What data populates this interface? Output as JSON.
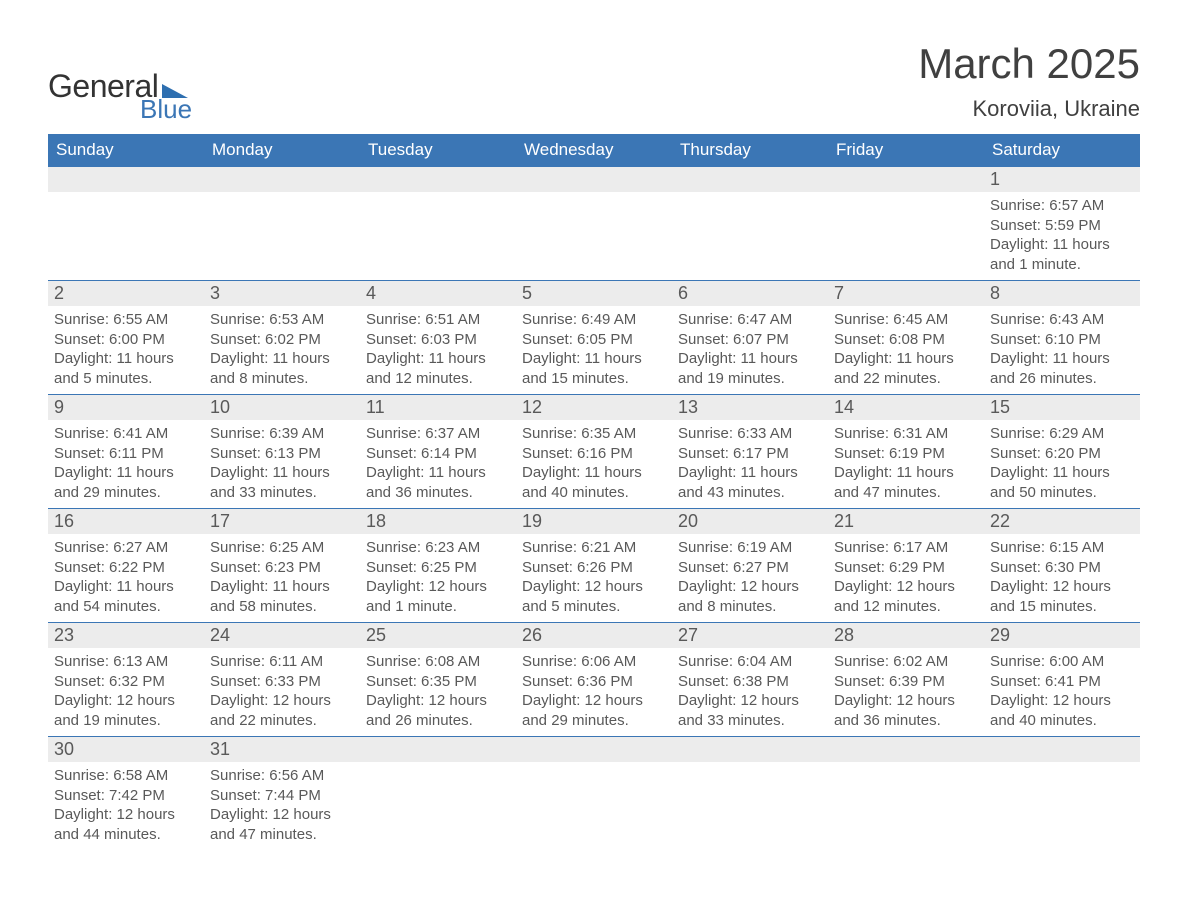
{
  "brand": {
    "word1": "General",
    "word2": "Blue",
    "shape_color": "#2e6fb0",
    "word1_color": "#333333",
    "word2_color": "#3b76b5"
  },
  "title": {
    "month_year": "March 2025",
    "location": "Koroviia, Ukraine",
    "title_fontsize": 42,
    "location_fontsize": 22,
    "text_color": "#404040"
  },
  "calendar": {
    "type": "table",
    "header_bg": "#3b76b5",
    "header_text_color": "#ffffff",
    "daynum_bg": "#ececec",
    "row_border_color": "#3b76b5",
    "body_text_color": "#595959",
    "header_fontsize": 17,
    "daynum_fontsize": 18,
    "body_fontsize": 15,
    "columns": [
      "Sunday",
      "Monday",
      "Tuesday",
      "Wednesday",
      "Thursday",
      "Friday",
      "Saturday"
    ],
    "weeks": [
      [
        null,
        null,
        null,
        null,
        null,
        null,
        {
          "n": 1,
          "sunrise": "6:57 AM",
          "sunset": "5:59 PM",
          "daylight": "11 hours and 1 minute."
        }
      ],
      [
        {
          "n": 2,
          "sunrise": "6:55 AM",
          "sunset": "6:00 PM",
          "daylight": "11 hours and 5 minutes."
        },
        {
          "n": 3,
          "sunrise": "6:53 AM",
          "sunset": "6:02 PM",
          "daylight": "11 hours and 8 minutes."
        },
        {
          "n": 4,
          "sunrise": "6:51 AM",
          "sunset": "6:03 PM",
          "daylight": "11 hours and 12 minutes."
        },
        {
          "n": 5,
          "sunrise": "6:49 AM",
          "sunset": "6:05 PM",
          "daylight": "11 hours and 15 minutes."
        },
        {
          "n": 6,
          "sunrise": "6:47 AM",
          "sunset": "6:07 PM",
          "daylight": "11 hours and 19 minutes."
        },
        {
          "n": 7,
          "sunrise": "6:45 AM",
          "sunset": "6:08 PM",
          "daylight": "11 hours and 22 minutes."
        },
        {
          "n": 8,
          "sunrise": "6:43 AM",
          "sunset": "6:10 PM",
          "daylight": "11 hours and 26 minutes."
        }
      ],
      [
        {
          "n": 9,
          "sunrise": "6:41 AM",
          "sunset": "6:11 PM",
          "daylight": "11 hours and 29 minutes."
        },
        {
          "n": 10,
          "sunrise": "6:39 AM",
          "sunset": "6:13 PM",
          "daylight": "11 hours and 33 minutes."
        },
        {
          "n": 11,
          "sunrise": "6:37 AM",
          "sunset": "6:14 PM",
          "daylight": "11 hours and 36 minutes."
        },
        {
          "n": 12,
          "sunrise": "6:35 AM",
          "sunset": "6:16 PM",
          "daylight": "11 hours and 40 minutes."
        },
        {
          "n": 13,
          "sunrise": "6:33 AM",
          "sunset": "6:17 PM",
          "daylight": "11 hours and 43 minutes."
        },
        {
          "n": 14,
          "sunrise": "6:31 AM",
          "sunset": "6:19 PM",
          "daylight": "11 hours and 47 minutes."
        },
        {
          "n": 15,
          "sunrise": "6:29 AM",
          "sunset": "6:20 PM",
          "daylight": "11 hours and 50 minutes."
        }
      ],
      [
        {
          "n": 16,
          "sunrise": "6:27 AM",
          "sunset": "6:22 PM",
          "daylight": "11 hours and 54 minutes."
        },
        {
          "n": 17,
          "sunrise": "6:25 AM",
          "sunset": "6:23 PM",
          "daylight": "11 hours and 58 minutes."
        },
        {
          "n": 18,
          "sunrise": "6:23 AM",
          "sunset": "6:25 PM",
          "daylight": "12 hours and 1 minute."
        },
        {
          "n": 19,
          "sunrise": "6:21 AM",
          "sunset": "6:26 PM",
          "daylight": "12 hours and 5 minutes."
        },
        {
          "n": 20,
          "sunrise": "6:19 AM",
          "sunset": "6:27 PM",
          "daylight": "12 hours and 8 minutes."
        },
        {
          "n": 21,
          "sunrise": "6:17 AM",
          "sunset": "6:29 PM",
          "daylight": "12 hours and 12 minutes."
        },
        {
          "n": 22,
          "sunrise": "6:15 AM",
          "sunset": "6:30 PM",
          "daylight": "12 hours and 15 minutes."
        }
      ],
      [
        {
          "n": 23,
          "sunrise": "6:13 AM",
          "sunset": "6:32 PM",
          "daylight": "12 hours and 19 minutes."
        },
        {
          "n": 24,
          "sunrise": "6:11 AM",
          "sunset": "6:33 PM",
          "daylight": "12 hours and 22 minutes."
        },
        {
          "n": 25,
          "sunrise": "6:08 AM",
          "sunset": "6:35 PM",
          "daylight": "12 hours and 26 minutes."
        },
        {
          "n": 26,
          "sunrise": "6:06 AM",
          "sunset": "6:36 PM",
          "daylight": "12 hours and 29 minutes."
        },
        {
          "n": 27,
          "sunrise": "6:04 AM",
          "sunset": "6:38 PM",
          "daylight": "12 hours and 33 minutes."
        },
        {
          "n": 28,
          "sunrise": "6:02 AM",
          "sunset": "6:39 PM",
          "daylight": "12 hours and 36 minutes."
        },
        {
          "n": 29,
          "sunrise": "6:00 AM",
          "sunset": "6:41 PM",
          "daylight": "12 hours and 40 minutes."
        }
      ],
      [
        {
          "n": 30,
          "sunrise": "6:58 AM",
          "sunset": "7:42 PM",
          "daylight": "12 hours and 44 minutes."
        },
        {
          "n": 31,
          "sunrise": "6:56 AM",
          "sunset": "7:44 PM",
          "daylight": "12 hours and 47 minutes."
        },
        null,
        null,
        null,
        null,
        null
      ]
    ],
    "labels": {
      "sunrise": "Sunrise: ",
      "sunset": "Sunset: ",
      "daylight": "Daylight: "
    }
  }
}
